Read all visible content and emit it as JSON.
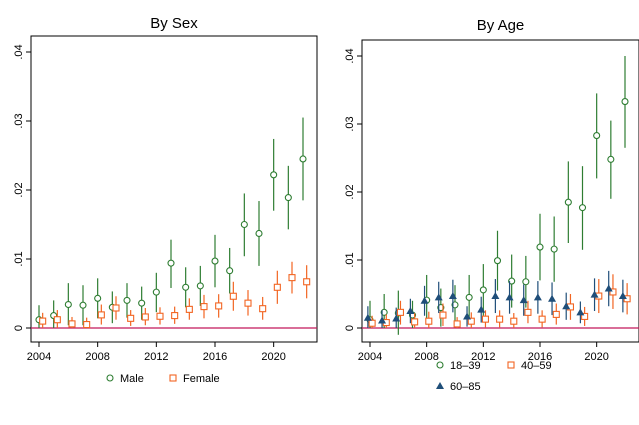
{
  "chart_data": [
    {
      "type": "scatter",
      "title": "By Sex",
      "xlabel": "",
      "ylabel": "",
      "xlim": [
        2004,
        2022
      ],
      "ylim": [
        0,
        0.04
      ],
      "xticks": [
        "2004",
        "2008",
        "2012",
        "2016",
        "2020"
      ],
      "xtick_values": [
        2004,
        2008,
        2012,
        2016,
        2020
      ],
      "yticks": [
        "0",
        ".01",
        ".02",
        ".03",
        ".04"
      ],
      "ytick_values": [
        0,
        0.01,
        0.02,
        0.03,
        0.04
      ],
      "reference_line": {
        "y": 0,
        "color": "#c2185b"
      },
      "grid": false,
      "legend_position": "bottom",
      "series": [
        {
          "name": "Male",
          "marker": "circle-open",
          "color": "#2e7d32",
          "points": [
            {
              "x": 2004,
              "y": 0.0012,
              "lo": 0.0,
              "hi": 0.0033
            },
            {
              "x": 2005,
              "y": 0.0018,
              "lo": 0.0,
              "hi": 0.004
            },
            {
              "x": 2006,
              "y": 0.0034,
              "lo": 0.0004,
              "hi": 0.0065
            },
            {
              "x": 2007,
              "y": 0.0033,
              "lo": 0.0004,
              "hi": 0.0062
            },
            {
              "x": 2008,
              "y": 0.0043,
              "lo": 0.0014,
              "hi": 0.0072
            },
            {
              "x": 2009,
              "y": 0.003,
              "lo": 0.0007,
              "hi": 0.0053
            },
            {
              "x": 2010,
              "y": 0.004,
              "lo": 0.0015,
              "hi": 0.0065
            },
            {
              "x": 2011,
              "y": 0.0036,
              "lo": 0.0012,
              "hi": 0.006
            },
            {
              "x": 2012,
              "y": 0.0052,
              "lo": 0.0023,
              "hi": 0.008
            },
            {
              "x": 2013,
              "y": 0.0094,
              "lo": 0.0058,
              "hi": 0.0128
            },
            {
              "x": 2014,
              "y": 0.0059,
              "lo": 0.003,
              "hi": 0.0088
            },
            {
              "x": 2015,
              "y": 0.0061,
              "lo": 0.0032,
              "hi": 0.009
            },
            {
              "x": 2016,
              "y": 0.0097,
              "lo": 0.0059,
              "hi": 0.0135
            },
            {
              "x": 2017,
              "y": 0.0083,
              "lo": 0.005,
              "hi": 0.0116
            },
            {
              "x": 2018,
              "y": 0.015,
              "lo": 0.0104,
              "hi": 0.0195
            },
            {
              "x": 2019,
              "y": 0.0137,
              "lo": 0.009,
              "hi": 0.0184
            },
            {
              "x": 2020,
              "y": 0.0222,
              "lo": 0.017,
              "hi": 0.0274
            },
            {
              "x": 2021,
              "y": 0.0189,
              "lo": 0.0143,
              "hi": 0.0235
            },
            {
              "x": 2022,
              "y": 0.0245,
              "lo": 0.0185,
              "hi": 0.0305
            }
          ]
        },
        {
          "name": "Female",
          "marker": "square-open",
          "color": "#f26522",
          "points": [
            {
              "x": 2004.25,
              "y": 0.001,
              "lo": 0.0,
              "hi": 0.0022
            },
            {
              "x": 2005.25,
              "y": 0.0012,
              "lo": 0.0,
              "hi": 0.0026
            },
            {
              "x": 2006.25,
              "y": 0.0006,
              "lo": 0.0,
              "hi": 0.0016
            },
            {
              "x": 2007.25,
              "y": 0.0005,
              "lo": 0.0,
              "hi": 0.0015
            },
            {
              "x": 2008.25,
              "y": 0.0019,
              "lo": 0.0005,
              "hi": 0.0034
            },
            {
              "x": 2009.25,
              "y": 0.0029,
              "lo": 0.0012,
              "hi": 0.0046
            },
            {
              "x": 2010.25,
              "y": 0.0014,
              "lo": 0.0003,
              "hi": 0.0026
            },
            {
              "x": 2011.25,
              "y": 0.0016,
              "lo": 0.0004,
              "hi": 0.0029
            },
            {
              "x": 2012.25,
              "y": 0.0017,
              "lo": 0.0005,
              "hi": 0.003
            },
            {
              "x": 2013.25,
              "y": 0.0018,
              "lo": 0.0006,
              "hi": 0.0031
            },
            {
              "x": 2014.25,
              "y": 0.0027,
              "lo": 0.0012,
              "hi": 0.0043
            },
            {
              "x": 2015.25,
              "y": 0.0031,
              "lo": 0.0014,
              "hi": 0.0048
            },
            {
              "x": 2016.25,
              "y": 0.0032,
              "lo": 0.0015,
              "hi": 0.0049
            },
            {
              "x": 2017.25,
              "y": 0.0046,
              "lo": 0.0025,
              "hi": 0.0067
            },
            {
              "x": 2018.25,
              "y": 0.0036,
              "lo": 0.0018,
              "hi": 0.0055
            },
            {
              "x": 2019.25,
              "y": 0.0028,
              "lo": 0.0012,
              "hi": 0.0045
            },
            {
              "x": 2020.25,
              "y": 0.0059,
              "lo": 0.0035,
              "hi": 0.0083
            },
            {
              "x": 2021.25,
              "y": 0.0073,
              "lo": 0.005,
              "hi": 0.0096
            },
            {
              "x": 2022.25,
              "y": 0.0067,
              "lo": 0.0043,
              "hi": 0.0091
            }
          ]
        }
      ]
    },
    {
      "type": "scatter",
      "title": "By Age",
      "xlabel": "",
      "ylabel": "",
      "xlim": [
        2004,
        2022
      ],
      "ylim": [
        0,
        0.04
      ],
      "xticks": [
        "2004",
        "2008",
        "2012",
        "2016",
        "2020"
      ],
      "xtick_values": [
        2004,
        2008,
        2012,
        2016,
        2020
      ],
      "yticks": [
        "0",
        ".01",
        ".02",
        ".03",
        ".04"
      ],
      "ytick_values": [
        0,
        0.01,
        0.02,
        0.03,
        0.04
      ],
      "reference_line": {
        "y": 0,
        "color": "#c2185b"
      },
      "grid": false,
      "legend_position": "bottom",
      "series": [
        {
          "name": "18–39",
          "marker": "circle-open",
          "color": "#2e7d32",
          "points": [
            {
              "x": 2004,
              "y": 0.0012,
              "lo": 0.0,
              "hi": 0.004
            },
            {
              "x": 2005,
              "y": 0.0023,
              "lo": 0.0,
              "hi": 0.005
            },
            {
              "x": 2006,
              "y": 0.0022,
              "lo": -0.001,
              "hi": 0.0055
            },
            {
              "x": 2007,
              "y": 0.0019,
              "lo": 0.0,
              "hi": 0.004
            },
            {
              "x": 2008,
              "y": 0.0041,
              "lo": 0.0005,
              "hi": 0.0078
            },
            {
              "x": 2009,
              "y": 0.003,
              "lo": 0.0002,
              "hi": 0.0058
            },
            {
              "x": 2010,
              "y": 0.0034,
              "lo": 0.0005,
              "hi": 0.0063
            },
            {
              "x": 2011,
              "y": 0.0045,
              "lo": 0.0012,
              "hi": 0.0078
            },
            {
              "x": 2012,
              "y": 0.0056,
              "lo": 0.0018,
              "hi": 0.0094
            },
            {
              "x": 2013,
              "y": 0.0099,
              "lo": 0.0055,
              "hi": 0.0143
            },
            {
              "x": 2014,
              "y": 0.0069,
              "lo": 0.003,
              "hi": 0.0108
            },
            {
              "x": 2015,
              "y": 0.0068,
              "lo": 0.003,
              "hi": 0.0106
            },
            {
              "x": 2016,
              "y": 0.0119,
              "lo": 0.007,
              "hi": 0.0168
            },
            {
              "x": 2017,
              "y": 0.0116,
              "lo": 0.0068,
              "hi": 0.0164
            },
            {
              "x": 2018,
              "y": 0.0185,
              "lo": 0.0125,
              "hi": 0.0245
            },
            {
              "x": 2019,
              "y": 0.0177,
              "lo": 0.0115,
              "hi": 0.0238
            },
            {
              "x": 2020,
              "y": 0.0283,
              "lo": 0.022,
              "hi": 0.0345
            },
            {
              "x": 2021,
              "y": 0.0248,
              "lo": 0.019,
              "hi": 0.0305
            },
            {
              "x": 2022,
              "y": 0.0333,
              "lo": 0.0265,
              "hi": 0.04
            }
          ]
        },
        {
          "name": "40–59",
          "marker": "square-open",
          "color": "#f26522",
          "points": [
            {
              "x": 2004.15,
              "y": 0.0007,
              "lo": 0.0,
              "hi": 0.0018
            },
            {
              "x": 2005.15,
              "y": 0.0008,
              "lo": 0.0,
              "hi": 0.002
            },
            {
              "x": 2006.15,
              "y": 0.0023,
              "lo": 0.0005,
              "hi": 0.004
            },
            {
              "x": 2007.15,
              "y": 0.0009,
              "lo": 0.0,
              "hi": 0.0022
            },
            {
              "x": 2008.15,
              "y": 0.001,
              "lo": 0.0,
              "hi": 0.0024
            },
            {
              "x": 2009.15,
              "y": 0.0019,
              "lo": 0.0003,
              "hi": 0.0036
            },
            {
              "x": 2010.15,
              "y": 0.0006,
              "lo": 0.0,
              "hi": 0.0016
            },
            {
              "x": 2011.15,
              "y": 0.001,
              "lo": 0.0,
              "hi": 0.0023
            },
            {
              "x": 2012.15,
              "y": 0.0013,
              "lo": 0.0001,
              "hi": 0.0026
            },
            {
              "x": 2013.15,
              "y": 0.0013,
              "lo": 0.0001,
              "hi": 0.0026
            },
            {
              "x": 2014.15,
              "y": 0.001,
              "lo": 0.0,
              "hi": 0.0022
            },
            {
              "x": 2015.15,
              "y": 0.0023,
              "lo": 0.0007,
              "hi": 0.004
            },
            {
              "x": 2016.15,
              "y": 0.0013,
              "lo": 0.0001,
              "hi": 0.0026
            },
            {
              "x": 2017.15,
              "y": 0.002,
              "lo": 0.0005,
              "hi": 0.0036
            },
            {
              "x": 2018.15,
              "y": 0.0031,
              "lo": 0.0012,
              "hi": 0.005
            },
            {
              "x": 2019.15,
              "y": 0.0017,
              "lo": 0.0003,
              "hi": 0.0031
            },
            {
              "x": 2020.15,
              "y": 0.0047,
              "lo": 0.0022,
              "hi": 0.0072
            },
            {
              "x": 2021.15,
              "y": 0.0053,
              "lo": 0.0028,
              "hi": 0.0079
            },
            {
              "x": 2022.15,
              "y": 0.0043,
              "lo": 0.002,
              "hi": 0.0066
            }
          ]
        },
        {
          "name": "60–85",
          "marker": "triangle-filled",
          "color": "#1f4e79",
          "points": [
            {
              "x": 2003.85,
              "y": 0.0015,
              "lo": 0.0,
              "hi": 0.0032
            },
            {
              "x": 2004.85,
              "y": 0.0011,
              "lo": 0.0,
              "hi": 0.0026
            },
            {
              "x": 2005.85,
              "y": 0.0014,
              "lo": 0.0,
              "hi": 0.003
            },
            {
              "x": 2006.85,
              "y": 0.0025,
              "lo": 0.0007,
              "hi": 0.0043
            },
            {
              "x": 2007.85,
              "y": 0.004,
              "lo": 0.0018,
              "hi": 0.0062
            },
            {
              "x": 2008.85,
              "y": 0.0045,
              "lo": 0.0022,
              "hi": 0.0068
            },
            {
              "x": 2009.85,
              "y": 0.0047,
              "lo": 0.0023,
              "hi": 0.0071
            },
            {
              "x": 2010.85,
              "y": 0.0017,
              "lo": 0.0002,
              "hi": 0.0032
            },
            {
              "x": 2011.85,
              "y": 0.0027,
              "lo": 0.0008,
              "hi": 0.0046
            },
            {
              "x": 2012.85,
              "y": 0.0047,
              "lo": 0.0022,
              "hi": 0.0072
            },
            {
              "x": 2013.85,
              "y": 0.0045,
              "lo": 0.0021,
              "hi": 0.0069
            },
            {
              "x": 2014.85,
              "y": 0.0041,
              "lo": 0.0018,
              "hi": 0.0064
            },
            {
              "x": 2015.85,
              "y": 0.0045,
              "lo": 0.0021,
              "hi": 0.0069
            },
            {
              "x": 2016.85,
              "y": 0.0043,
              "lo": 0.0019,
              "hi": 0.0067
            },
            {
              "x": 2017.85,
              "y": 0.0032,
              "lo": 0.0012,
              "hi": 0.0052
            },
            {
              "x": 2018.85,
              "y": 0.0023,
              "lo": 0.0007,
              "hi": 0.0039
            },
            {
              "x": 2019.85,
              "y": 0.0049,
              "lo": 0.0025,
              "hi": 0.0073
            },
            {
              "x": 2020.85,
              "y": 0.0058,
              "lo": 0.0032,
              "hi": 0.0084
            },
            {
              "x": 2021.85,
              "y": 0.0047,
              "lo": 0.0023,
              "hi": 0.0071
            }
          ]
        }
      ]
    }
  ]
}
